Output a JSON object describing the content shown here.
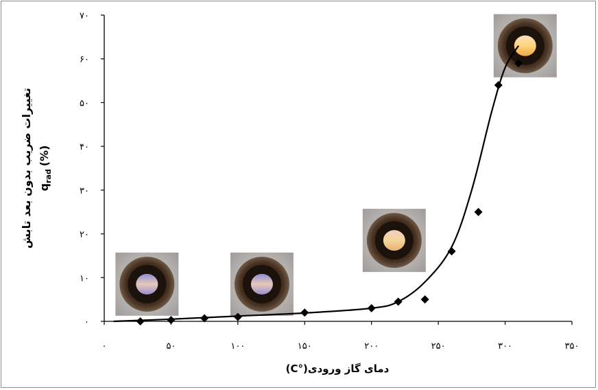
{
  "chart_data": {
    "type": "scatter",
    "title": "",
    "xlabel": "دمای گاز ورودی(°C)",
    "ylabel_line1": "تغییرات ضریب بدون بعد تابش",
    "ylabel_line2": "q",
    "ylabel_sub": "rad",
    "ylabel_unit": "(%)",
    "xlim": [
      0,
      350
    ],
    "ylim": [
      0,
      70
    ],
    "x_ticks": [
      0,
      50,
      100,
      150,
      200,
      250,
      300,
      350
    ],
    "y_ticks": [
      0,
      10,
      20,
      30,
      40,
      50,
      60,
      70
    ],
    "x_tick_labels": [
      "۰",
      "۵۰",
      "۱۰۰",
      "۱۵۰",
      "۲۰۰",
      "۲۵۰",
      "۳۰۰",
      "۳۵۰"
    ],
    "y_tick_labels": [
      "۰",
      "۱۰",
      "۲۰",
      "۳۰",
      "۴۰",
      "۵۰",
      "۶۰",
      "۷۰"
    ],
    "grid": false,
    "legend": "none",
    "series": [
      {
        "marker": "diamond",
        "color": "#000000",
        "x": [
          27,
          50,
          75,
          100,
          150,
          200,
          220,
          240,
          260,
          280,
          295,
          310
        ],
        "y": [
          0,
          0.3,
          0.7,
          1,
          2,
          3,
          4.5,
          5,
          16,
          25,
          54,
          59
        ]
      }
    ],
    "trendline": {
      "color": "#000000",
      "x": [
        7,
        50,
        100,
        150,
        200,
        220,
        240,
        260,
        275,
        290,
        300,
        310
      ],
      "y": [
        0,
        0.5,
        1.2,
        1.9,
        3,
        4.5,
        9,
        17,
        30,
        48,
        58,
        63
      ]
    },
    "photos": [
      {
        "name": "photo-30c",
        "x": 32,
        "y": 8.5
      },
      {
        "name": "photo-115c",
        "x": 118,
        "y": 8.5
      },
      {
        "name": "photo-217c",
        "x": 217,
        "y": 18.5
      },
      {
        "name": "photo-314c",
        "x": 315,
        "y": 63
      }
    ]
  }
}
